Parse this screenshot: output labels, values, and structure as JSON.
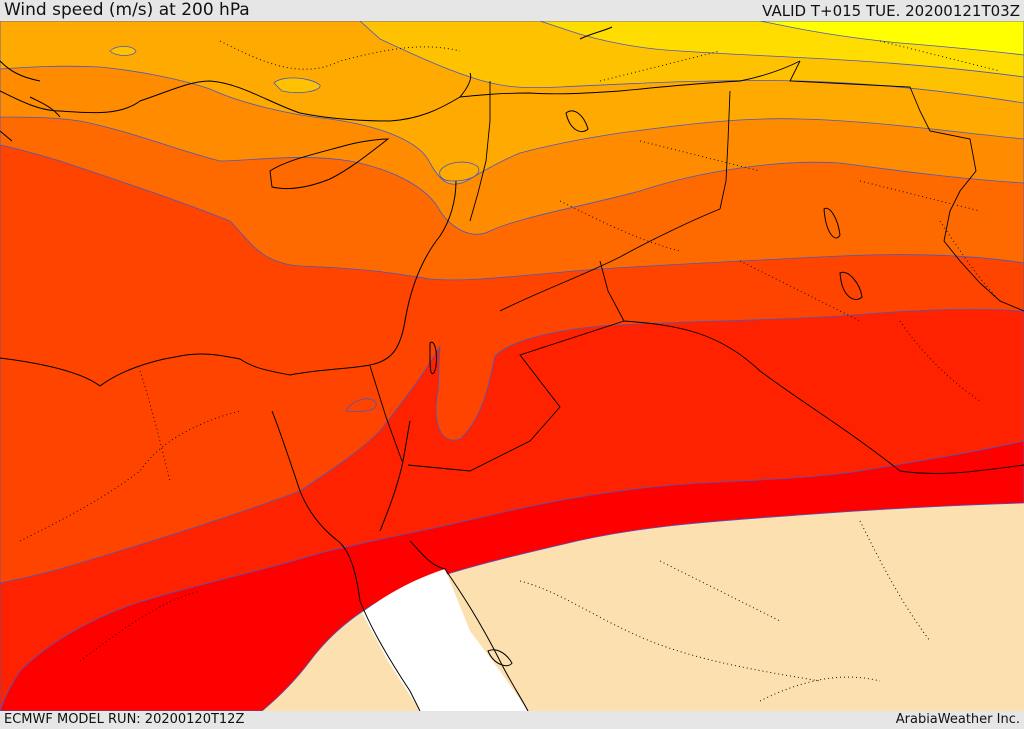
{
  "header": {
    "title": "Wind speed (m/s) at 200 hPa",
    "valid": "VALID T+015 TUE. 20200121T03Z"
  },
  "footer": {
    "model_run": "ECMWF MODEL RUN: 20200120T12Z",
    "credit": "ArabiaWeather Inc."
  },
  "map": {
    "variable": "wind speed",
    "level": "200 hPa",
    "units": "m/s",
    "legend_shown": false,
    "palette": {
      "lightest": "#FFFFFF",
      "pale": "#FDE0AF",
      "band_1": "#FF0000",
      "band_2": "#FF2200",
      "band_3": "#FF4400",
      "band_4": "#FF6A00",
      "band_5": "#FF8C00",
      "band_6": "#FFAA00",
      "band_7": "#FFC200",
      "band_8": "#FFDD00",
      "band_9": "#FFFF00",
      "contour_line": "#4a57c4",
      "coastline": "#000000",
      "border": "#000000"
    }
  }
}
